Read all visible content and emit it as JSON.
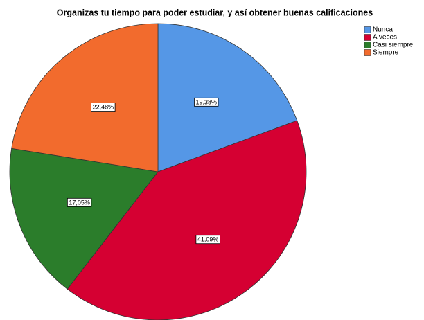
{
  "chart_data": {
    "type": "pie",
    "title": "Organizas tu tiempo para poder estudiar, y así obtener buenas calificaciones",
    "categories": [
      "Nunca",
      "A veces",
      "Casi siempre",
      "Siempre"
    ],
    "values": [
      19.38,
      41.09,
      17.05,
      22.48
    ],
    "value_labels": [
      "19,38%",
      "41,09%",
      "17,05%",
      "22,48%"
    ],
    "colors": [
      "#5597e6",
      "#d50032",
      "#2b7d2b",
      "#f26b2d"
    ],
    "legend": "top-right"
  }
}
